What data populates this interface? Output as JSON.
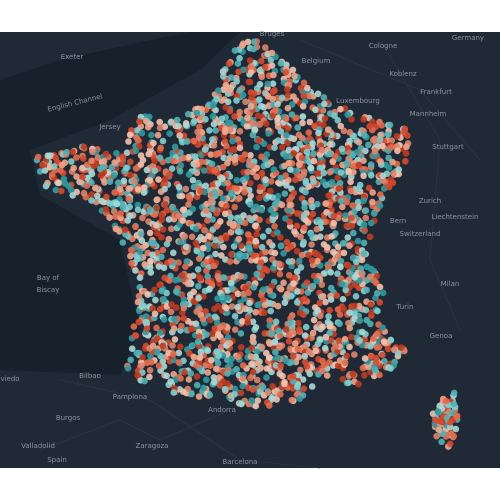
{
  "map": {
    "labels": [
      "Germany",
      "Belgium",
      "Cologne",
      "Bruges",
      "Exeter",
      "English Channel",
      "Koblenz",
      "Frankfurt",
      "Luxembourg",
      "Jersey",
      "Mannheim",
      "Stuttgart",
      "Zurich",
      "Bern",
      "Liechtenstein",
      "Switzerland",
      "Bay of",
      "Biscay",
      "Milan",
      "Turin",
      "Genoa",
      "viedo",
      "Bilbao",
      "Pamplona",
      "Burgos",
      "Andorra",
      "Zaragoza",
      "Valladolid",
      "Spain",
      "Barcelona"
    ]
  }
}
